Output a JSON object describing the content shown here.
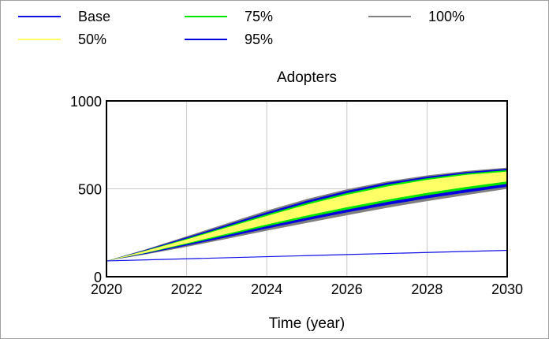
{
  "legend": [
    {
      "label": "Base",
      "color": "#1010e6"
    },
    {
      "label": "50%",
      "color": "#ffff66"
    },
    {
      "label": "75%",
      "color": "#00e600"
    },
    {
      "label": "95%",
      "color": "#0000e0"
    },
    {
      "label": "100%",
      "color": "#808080"
    }
  ],
  "chart_data": {
    "type": "area",
    "title": "Adopters",
    "xlabel": "Time (year)",
    "ylabel": "",
    "xlim": [
      2020,
      2030
    ],
    "ylim": [
      0,
      1000
    ],
    "x_ticks": [
      "2020",
      "2022",
      "2024",
      "2026",
      "2028",
      "2030"
    ],
    "y_ticks": [
      "0",
      "500",
      "1000"
    ],
    "grid": true,
    "legend_position": "top",
    "x": [
      2020,
      2021,
      2022,
      2023,
      2024,
      2025,
      2026,
      2027,
      2028,
      2029,
      2030
    ],
    "base": {
      "name": "Base",
      "values": [
        90,
        96,
        102,
        108,
        114,
        120,
        126,
        132,
        138,
        144,
        150
      ]
    },
    "bands": [
      {
        "name": "100%",
        "lower": [
          90,
          128,
          170,
          215,
          262,
          306,
          350,
          392,
          430,
          465,
          500
        ],
        "upper": [
          90,
          157,
          230,
          303,
          376,
          442,
          497,
          542,
          576,
          602,
          620
        ]
      },
      {
        "name": "95%",
        "lower": [
          90,
          131,
          177,
          225,
          274,
          321,
          366,
          408,
          446,
          480,
          512
        ],
        "upper": [
          90,
          154,
          224,
          295,
          366,
          432,
          488,
          534,
          569,
          596,
          614
        ]
      },
      {
        "name": "75%",
        "lower": [
          90,
          135,
          185,
          236,
          287,
          336,
          382,
          425,
          463,
          497,
          528
        ],
        "upper": [
          90,
          151,
          217,
          286,
          355,
          420,
          476,
          523,
          560,
          588,
          606
        ]
      },
      {
        "name": "50%",
        "lower": [
          90,
          137,
          190,
          244,
          297,
          348,
          395,
          438,
          477,
          511,
          542
        ],
        "upper": [
          90,
          149,
          212,
          279,
          346,
          410,
          466,
          513,
          551,
          580,
          598
        ]
      }
    ]
  }
}
